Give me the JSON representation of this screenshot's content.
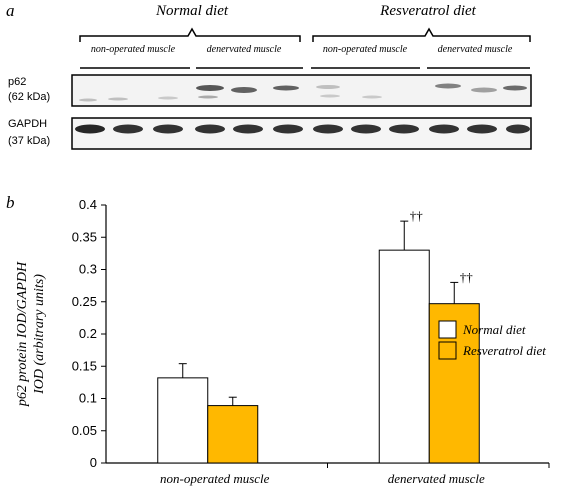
{
  "panel_a": {
    "label": "a",
    "groups": [
      "Normal diet",
      "Resveratrol diet"
    ],
    "subgroups": [
      "non-operated muscle",
      "denervated muscle",
      "non-operated muscle",
      "denervated muscle"
    ],
    "blots": [
      {
        "name": "p62",
        "weight": "(62 kDa)"
      },
      {
        "name": "GAPDH",
        "weight": "(37 kDa)"
      }
    ]
  },
  "panel_b": {
    "label": "b",
    "ylabel_line1": "p62 protein  IOD/GAPDH",
    "ylabel_line2": "IOD  (arbitrary units)"
  },
  "colors": {
    "normal_fill": "#ffffff",
    "resveratrol_fill": "#ffb800",
    "axis": "#000000"
  },
  "chart_data": {
    "type": "bar",
    "categories": [
      "non-operated muscle",
      "denervated muscle"
    ],
    "series": [
      {
        "name": "Normal diet",
        "values": [
          0.132,
          0.33
        ],
        "errors": [
          0.022,
          0.045
        ],
        "annotations": [
          "",
          "††"
        ]
      },
      {
        "name": "Resveratrol diet",
        "values": [
          0.089,
          0.247
        ],
        "errors": [
          0.013,
          0.033
        ],
        "annotations": [
          "",
          "††"
        ]
      }
    ],
    "ylim": [
      0,
      0.4
    ],
    "yticks": [
      "0",
      "0.05",
      "0.1",
      "0.15",
      "0.2",
      "0.25",
      "0.3",
      "0.35",
      "0.4"
    ],
    "legend": "right"
  }
}
